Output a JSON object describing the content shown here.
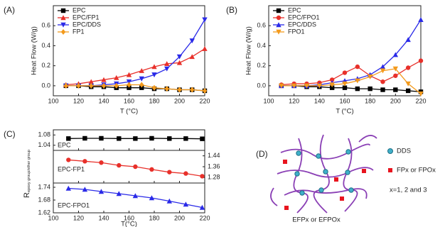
{
  "chart_data": [
    {
      "type": "line",
      "panel_label": "(A)",
      "xlabel": "T (°C)",
      "ylabel": "Heat Flow (W/g)",
      "xlim": [
        100,
        220
      ],
      "xticks": [
        100,
        120,
        140,
        160,
        180,
        200,
        220
      ],
      "ylim": [
        -0.1,
        0.8
      ],
      "yticks": [
        {
          "value": 0,
          "label": "0.0"
        },
        {
          "value": 0.2,
          "label": "0.2"
        },
        {
          "value": 0.4,
          "label": "0.4"
        },
        {
          "value": 0.6,
          "label": "0.6"
        }
      ],
      "legend": "upper left",
      "x": [
        110,
        120,
        130,
        140,
        150,
        160,
        170,
        180,
        190,
        200,
        210,
        220
      ],
      "series": [
        {
          "name": "EPC",
          "color": "#000000",
          "marker": "square",
          "values": [
            0,
            0,
            -0.01,
            -0.01,
            -0.02,
            -0.02,
            -0.02,
            -0.03,
            -0.03,
            -0.04,
            -0.04,
            -0.05
          ]
        },
        {
          "name": "EPC/FP1",
          "color": "#e8302a",
          "marker": "triangle-up",
          "values": [
            0.01,
            0.02,
            0.04,
            0.06,
            0.08,
            0.11,
            0.15,
            0.19,
            0.22,
            0.23,
            0.29,
            0.37
          ]
        },
        {
          "name": "EPC/DDS",
          "color": "#2a2ae8",
          "marker": "triangle-down",
          "values": [
            0,
            0,
            0,
            0.01,
            0.02,
            0.04,
            0.07,
            0.11,
            0.17,
            0.29,
            0.45,
            0.66
          ]
        },
        {
          "name": "FP1",
          "color": "#f39a1c",
          "marker": "diamond",
          "values": [
            0,
            0,
            0,
            0,
            0,
            0.01,
            0.01,
            -0.02,
            -0.03,
            -0.04,
            -0.04,
            -0.05
          ]
        }
      ]
    },
    {
      "type": "line",
      "panel_label": "(B)",
      "xlabel": "T (°C)",
      "ylabel": "Heat Flow (W/g)",
      "xlim": [
        100,
        220
      ],
      "xticks": [
        100,
        120,
        140,
        160,
        180,
        200,
        220
      ],
      "ylim": [
        -0.1,
        0.8
      ],
      "yticks": [
        {
          "value": 0,
          "label": "0.0"
        },
        {
          "value": 0.2,
          "label": "0.2"
        },
        {
          "value": 0.4,
          "label": "0.4"
        },
        {
          "value": 0.6,
          "label": "0.6"
        }
      ],
      "legend": "upper left",
      "x": [
        110,
        120,
        130,
        140,
        150,
        160,
        170,
        180,
        190,
        200,
        210,
        220
      ],
      "series": [
        {
          "name": "EPC",
          "color": "#000000",
          "marker": "square",
          "values": [
            0,
            0,
            -0.01,
            -0.01,
            -0.02,
            -0.02,
            -0.03,
            -0.03,
            -0.04,
            -0.04,
            -0.05,
            -0.06
          ]
        },
        {
          "name": "EPC/FPO1",
          "color": "#e8302a",
          "marker": "circle",
          "values": [
            0.01,
            0.02,
            0.02,
            0.03,
            0.06,
            0.13,
            0.19,
            0.1,
            0.04,
            0.1,
            0.18,
            0.25
          ]
        },
        {
          "name": "EPC/DDS",
          "color": "#2a2ae8",
          "marker": "triangle-up",
          "values": [
            0,
            0,
            0,
            0.01,
            0.03,
            0.05,
            0.07,
            0.11,
            0.19,
            0.31,
            0.46,
            0.66
          ]
        },
        {
          "name": "FPO1",
          "color": "#f39a1c",
          "marker": "triangle-down",
          "values": [
            0,
            0,
            0,
            0,
            0.01,
            0.02,
            0.05,
            0.09,
            0.15,
            0.17,
            0.02,
            -0.08
          ]
        }
      ]
    },
    {
      "type": "stacked-line",
      "panel_label": "(C)",
      "xlabel": "T(°C)",
      "ylabel": "R",
      "ylabel_subscript": "epoxy group/ether group",
      "xlim": [
        100,
        220
      ],
      "xticks": [
        100,
        120,
        140,
        160,
        180,
        200,
        220
      ],
      "x": [
        112,
        125,
        138,
        152,
        165,
        178,
        192,
        205,
        218
      ],
      "subplots": [
        {
          "name": "EPC",
          "color": "#000000",
          "marker": "square",
          "axis_side": "left",
          "ylim": [
            1.02,
            1.1
          ],
          "yticks": [
            1.04,
            1.08
          ],
          "values": [
            1.066,
            1.067,
            1.067,
            1.066,
            1.066,
            1.067,
            1.066,
            1.066,
            1.065
          ]
        },
        {
          "name": "EPC-FP1",
          "color": "#e8302a",
          "marker": "circle",
          "axis_side": "right",
          "ylim": [
            1.24,
            1.48
          ],
          "yticks": [
            1.28,
            1.36,
            1.44
          ],
          "values": [
            1.41,
            1.4,
            1.39,
            1.37,
            1.36,
            1.34,
            1.32,
            1.31,
            1.29
          ]
        },
        {
          "name": "EPC-FPO1",
          "color": "#2a2ae8",
          "marker": "triangle-up",
          "axis_side": "left",
          "ylim": [
            1.62,
            1.76
          ],
          "yticks": [
            1.62,
            1.68,
            1.74
          ],
          "values": [
            1.735,
            1.73,
            1.72,
            1.71,
            1.7,
            1.69,
            1.675,
            1.66,
            1.645
          ]
        }
      ]
    }
  ],
  "diagram": {
    "panel_label": "(D)",
    "legend": [
      "DDS",
      "FPx or FPOx"
    ],
    "note": "x=1, 2 and 3",
    "caption": "EFPx or EFPOx"
  }
}
